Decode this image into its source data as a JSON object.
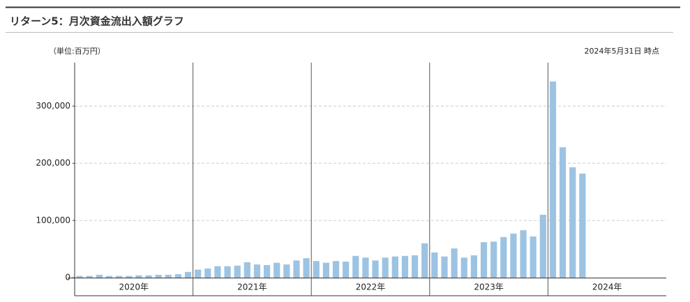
{
  "chart_data": {
    "type": "bar",
    "title": "リターン5：月次資金流出入額グラフ",
    "unit_label": "（単位:百万円）",
    "as_of": "2024年5月31日 時点",
    "categories": [
      "2020年",
      "2021年",
      "2022年",
      "2023年",
      "2024年"
    ],
    "values": [
      [
        3000,
        3000,
        5000,
        3000,
        3000,
        3000,
        4000,
        4000,
        5000,
        5000,
        6000,
        10000
      ],
      [
        14000,
        16000,
        20000,
        20000,
        21000,
        27000,
        23000,
        22000,
        26000,
        23000,
        30000,
        34000
      ],
      [
        29000,
        26000,
        29000,
        28000,
        38000,
        35000,
        30000,
        35000,
        37000,
        38000,
        39000,
        60000
      ],
      [
        44000,
        37000,
        51000,
        35000,
        39000,
        62000,
        63000,
        71000,
        77000,
        83000,
        72000,
        110000
      ],
      [
        343000,
        228000,
        193000,
        182000
      ]
    ],
    "color": "#9dc3e3",
    "ylim": [
      0,
      376000
    ],
    "yticks": [
      0,
      {
        "value": 100000,
        "label": "100,000"
      },
      {
        "value": 200000,
        "label": "200,000"
      },
      {
        "value": 300000,
        "label": "300,000"
      }
    ],
    "grid": true
  }
}
